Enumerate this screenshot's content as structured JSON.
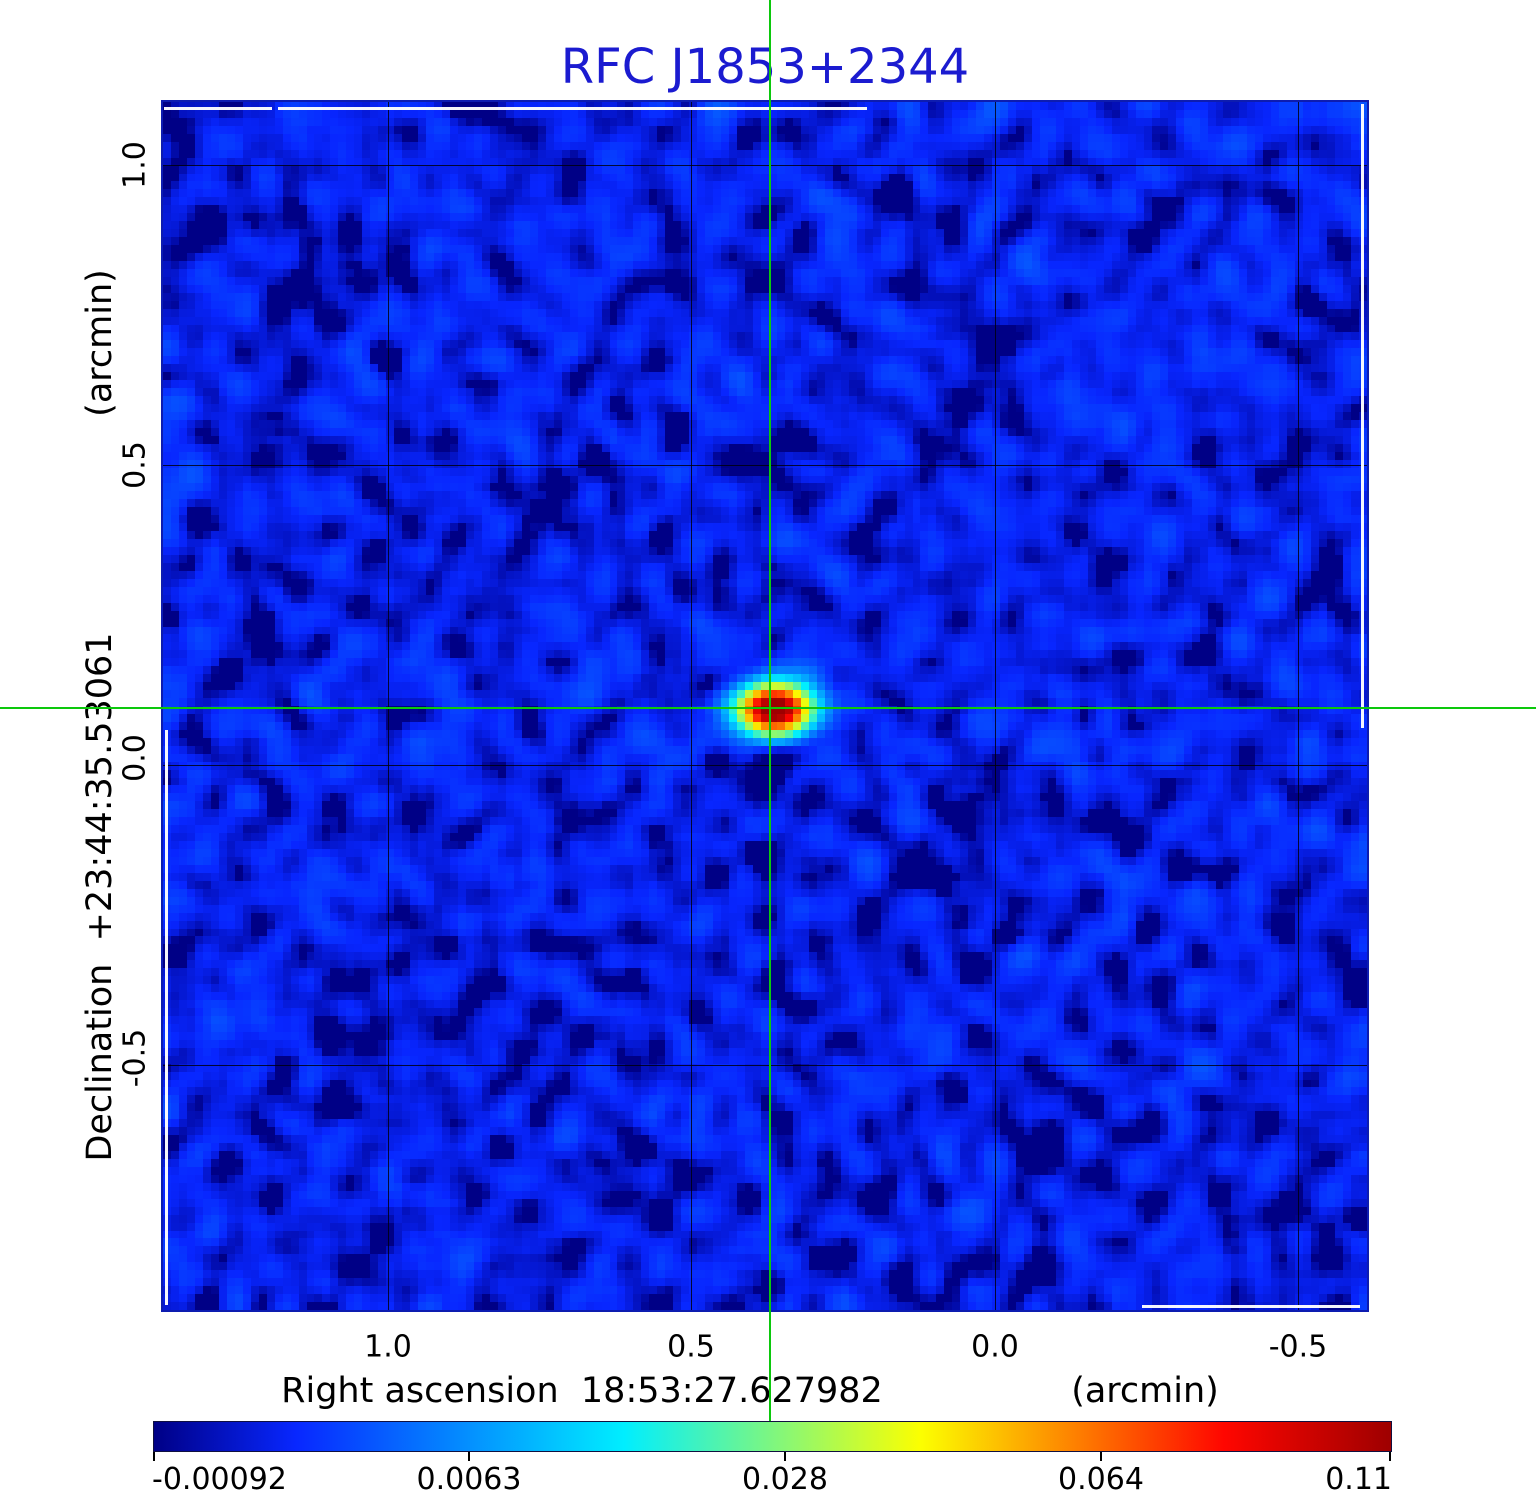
{
  "figure": {
    "title": "RFC J1853+2344",
    "title_color": "#1b1bd0",
    "crosshair_color": "#0cc80c"
  },
  "y_axis": {
    "unit_label": "(arcmin)",
    "axis_label": "Declination  +23:44:35.53061",
    "ticks": [
      "1.0",
      "0.5",
      "0.0",
      "-0.5"
    ]
  },
  "x_axis": {
    "unit_label": "(arcmin)",
    "axis_label": "Right ascension  18:53:27.627982",
    "ticks": [
      "1.0",
      "0.5",
      "0.0",
      "-0.5"
    ]
  },
  "colorbar": {
    "tick_labels": [
      "-0.00092",
      "0.0063",
      "0.028",
      "0.064",
      "0.11"
    ],
    "colormap": "jet"
  },
  "chart_data": {
    "type": "heatmap",
    "title": "RFC J1853+2344",
    "xlabel": "Right ascension  18:53:27.627982  (arcmin)",
    "ylabel": "Declination  +23:44:35.53061  (arcmin)",
    "x_ticks_arcmin": [
      1.0,
      0.5,
      0.0,
      -0.5
    ],
    "y_ticks_arcmin": [
      1.0,
      0.5,
      0.0,
      -0.5
    ],
    "x_range_arcmin": [
      1.37,
      -0.61
    ],
    "y_range_arcmin": [
      -0.9,
      1.1
    ],
    "colorbar_ticks": [
      -0.00092,
      0.0063,
      0.028,
      0.064,
      0.11
    ],
    "vmin": -0.00092,
    "vmax": 0.1109,
    "intensity_scale": "sqrt",
    "colormap": "jet",
    "background_level": 0.0,
    "source": {
      "peak_value": 0.11,
      "x_offset_arcmin": 0.37,
      "y_offset_arcmin": 0.09,
      "crosshair_marks_source": true
    },
    "grid": true,
    "legend_position": "none"
  }
}
